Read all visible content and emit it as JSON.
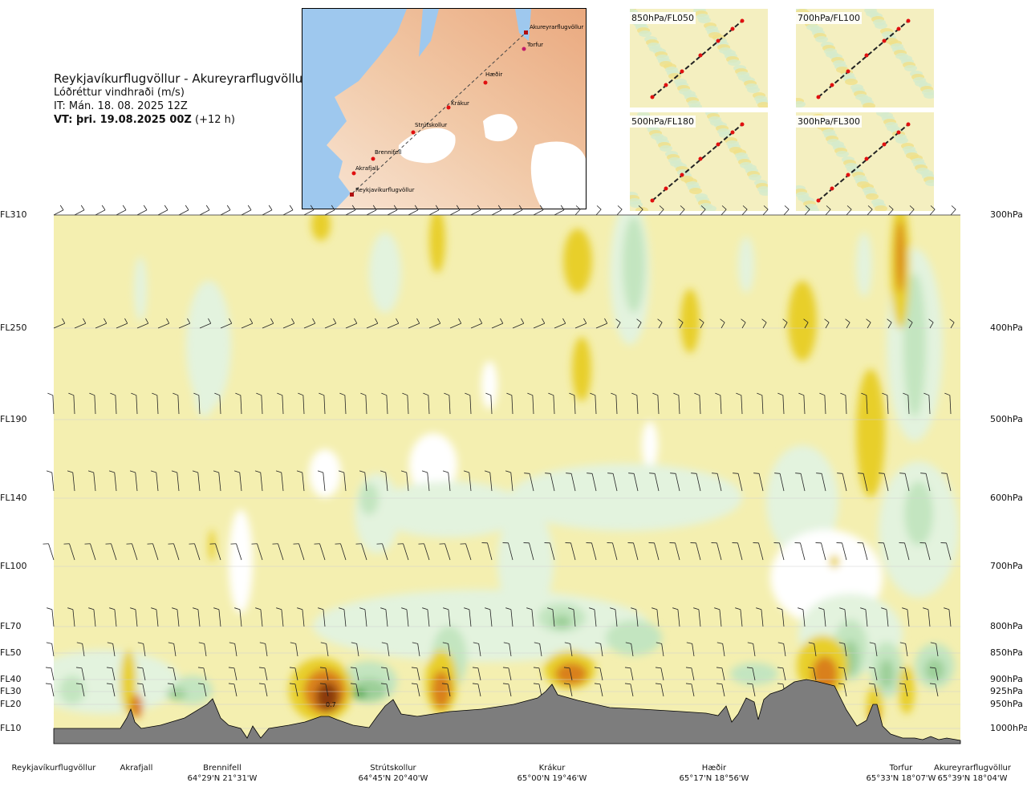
{
  "title": {
    "route": "Reykjavíkurflugvöllur - Akureyrarflugvöllur",
    "parameter": "Lóðréttur vindhraði (m/s)",
    "initial_time": "IT: Mán. 18. 08. 2025 12Z",
    "valid_time_bold": "VT: þri. 19.08.2025 00Z",
    "valid_time_offset": "(+12 h)"
  },
  "route_map": {
    "waypoints": [
      {
        "name": "Akureyrarflugvöllur"
      },
      {
        "name": "Torfur"
      },
      {
        "name": "Hæðir"
      },
      {
        "name": "Krákur"
      },
      {
        "name": "Strútskollur"
      },
      {
        "name": "Brennifell"
      },
      {
        "name": "Akrafjall"
      },
      {
        "name": "Reykjavíkurflugvöllur"
      }
    ]
  },
  "mini_maps": [
    {
      "label": "850hPa/FL050"
    },
    {
      "label": "700hPa/FL100"
    },
    {
      "label": "500hPa/FL180"
    },
    {
      "label": "300hPa/FL300"
    }
  ],
  "chart_data": {
    "type": "heatmap",
    "description_field": "vertical velocity cross-section",
    "flight_levels": [
      "FL310",
      "FL250",
      "FL190",
      "FL140",
      "FL100",
      "FL70",
      "FL50",
      "FL40",
      "FL30",
      "FL20",
      "FL10"
    ],
    "pressure_levels": [
      "300hPa",
      "400hPa",
      "500hPa",
      "600hPa",
      "700hPa",
      "800hPa",
      "850hPa",
      "900hPa",
      "925hPa",
      "950hPa",
      "1000hPa"
    ],
    "locations": [
      {
        "name": "Reykjavíkurflugvöllur",
        "coord": ""
      },
      {
        "name": "Akrafjall",
        "coord": ""
      },
      {
        "name": "Brennifell",
        "coord": "64°29'N 21°31'W"
      },
      {
        "name": "Strútskollur",
        "coord": "64°45'N 20°40'W"
      },
      {
        "name": "Krákur",
        "coord": "65°00'N 19°46'W"
      },
      {
        "name": "Hæðir",
        "coord": "65°17'N 18°56'W"
      },
      {
        "name": "Torfur",
        "coord": "65°33'N 18°07'W"
      },
      {
        "name": "Akureyrarflugvöllur",
        "coord": "65°39'N 18°04'W"
      }
    ],
    "annotations": [
      "0.7"
    ],
    "colors": {
      "strong_down": "#8a3a10",
      "down": "#d9801c",
      "weak_down": "#e8cf2c",
      "slight_down": "#f4efb0",
      "neutral": "#ffffff",
      "slight_up": "#e3f3de",
      "weak_up": "#c3e5c0",
      "up": "#9ccf98",
      "strong_up": "#4ba54a",
      "terrain": "#7d7d7d"
    }
  }
}
